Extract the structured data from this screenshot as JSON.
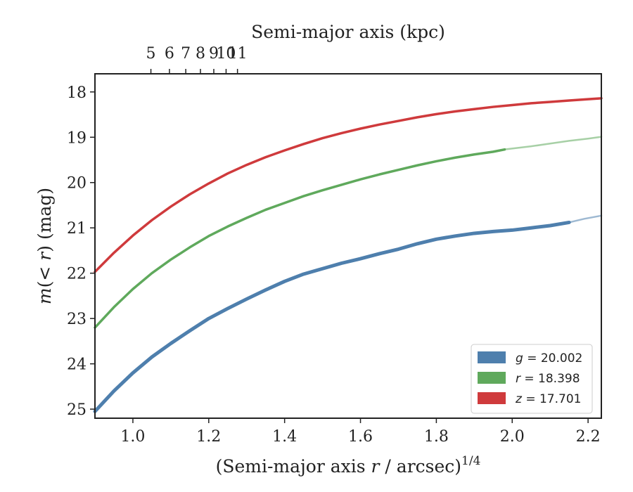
{
  "chart_data": {
    "type": "line",
    "xlabel": "(Semi-major axis r / arcsec)^{1/4}",
    "ylabel": "m(< r) (mag)",
    "top_xlabel": "Semi-major axis (kpc)",
    "xlim": [
      0.9,
      2.235
    ],
    "ylim": [
      25.2,
      17.6
    ],
    "y_inverted": true,
    "x_ticks": [
      1.0,
      1.2,
      1.4,
      1.6,
      1.8,
      2.0,
      2.2
    ],
    "x_tick_labels": [
      "1.0",
      "1.2",
      "1.4",
      "1.6",
      "1.8",
      "2.0",
      "2.2"
    ],
    "y_ticks": [
      18,
      19,
      20,
      21,
      22,
      23,
      24,
      25
    ],
    "y_tick_labels": [
      "18",
      "19",
      "20",
      "21",
      "22",
      "23",
      "24",
      "25"
    ],
    "top_ticks_kpc": [
      5,
      6,
      7,
      8,
      9,
      10,
      11
    ],
    "top_tick_labels": [
      "5",
      "6",
      "7",
      "8",
      "9",
      "10",
      "11"
    ],
    "grid": false,
    "legend_position": "lower-right",
    "series": [
      {
        "name": "g = 20.002",
        "legend_var": "g",
        "legend_value": "= 20.002",
        "color": "#4e7fad",
        "x": [
          0.9,
          0.95,
          1.0,
          1.05,
          1.1,
          1.15,
          1.2,
          1.25,
          1.3,
          1.35,
          1.4,
          1.45,
          1.5,
          1.55,
          1.6,
          1.65,
          1.7,
          1.75,
          1.8,
          1.85,
          1.9,
          1.95,
          2.0,
          2.05,
          2.1,
          2.15
        ],
        "y": [
          25.05,
          24.6,
          24.2,
          23.85,
          23.55,
          23.27,
          23.0,
          22.78,
          22.57,
          22.37,
          22.18,
          22.02,
          21.9,
          21.78,
          21.68,
          21.57,
          21.47,
          21.35,
          21.25,
          21.18,
          21.12,
          21.08,
          21.05,
          21.0,
          20.95,
          20.88
        ],
        "extension_x": [
          2.15,
          2.19,
          2.235
        ],
        "extension_y": [
          20.88,
          20.8,
          20.73
        ]
      },
      {
        "name": "r = 18.398",
        "legend_var": "r",
        "legend_value": "= 18.398",
        "color": "#5fa95c",
        "x": [
          0.9,
          0.95,
          1.0,
          1.05,
          1.1,
          1.15,
          1.2,
          1.25,
          1.3,
          1.35,
          1.4,
          1.45,
          1.5,
          1.55,
          1.6,
          1.65,
          1.7,
          1.75,
          1.8,
          1.85,
          1.9,
          1.95,
          1.98
        ],
        "y": [
          23.2,
          22.75,
          22.35,
          22.0,
          21.7,
          21.43,
          21.18,
          20.97,
          20.78,
          20.6,
          20.45,
          20.3,
          20.17,
          20.05,
          19.93,
          19.82,
          19.72,
          19.62,
          19.53,
          19.45,
          19.38,
          19.32,
          19.27
        ],
        "extension_x": [
          1.98,
          2.05,
          2.1,
          2.15,
          2.2,
          2.235
        ],
        "extension_y": [
          19.27,
          19.2,
          19.14,
          19.08,
          19.03,
          18.99
        ]
      },
      {
        "name": "z = 17.701",
        "legend_var": "z",
        "legend_value": "= 17.701",
        "color": "#cf3a3c",
        "x": [
          0.9,
          0.95,
          1.0,
          1.05,
          1.1,
          1.15,
          1.2,
          1.25,
          1.3,
          1.35,
          1.4,
          1.45,
          1.5,
          1.55,
          1.6,
          1.65,
          1.7,
          1.75,
          1.8,
          1.85,
          1.9,
          1.95,
          2.0,
          2.05,
          2.1,
          2.15,
          2.2,
          2.235
        ],
        "y": [
          21.97,
          21.55,
          21.17,
          20.83,
          20.53,
          20.26,
          20.02,
          19.8,
          19.61,
          19.44,
          19.29,
          19.15,
          19.02,
          18.91,
          18.81,
          18.72,
          18.64,
          18.56,
          18.49,
          18.43,
          18.38,
          18.33,
          18.29,
          18.25,
          18.22,
          18.19,
          18.16,
          18.14
        ]
      }
    ]
  }
}
